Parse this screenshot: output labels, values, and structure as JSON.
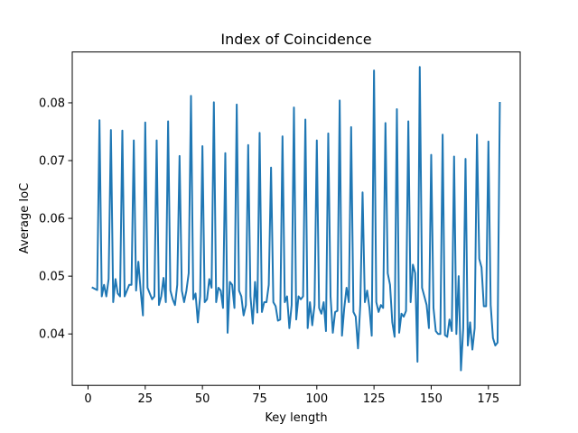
{
  "chart_data": {
    "type": "line",
    "title": "Index of Coincidence",
    "x_label": "Key length",
    "y_label": "Average IoC",
    "color": "#1f77b4",
    "x": [
      2,
      3,
      4,
      5,
      6,
      7,
      8,
      9,
      10,
      11,
      12,
      13,
      14,
      15,
      16,
      17,
      18,
      19,
      20,
      21,
      22,
      23,
      24,
      25,
      26,
      27,
      28,
      29,
      30,
      31,
      32,
      33,
      34,
      35,
      36,
      37,
      38,
      39,
      40,
      41,
      42,
      43,
      44,
      45,
      46,
      47,
      48,
      49,
      50,
      51,
      52,
      53,
      54,
      55,
      56,
      57,
      58,
      59,
      60,
      61,
      62,
      63,
      64,
      65,
      66,
      67,
      68,
      69,
      70,
      71,
      72,
      73,
      74,
      75,
      76,
      77,
      78,
      79,
      80,
      81,
      82,
      83,
      84,
      85,
      86,
      87,
      88,
      89,
      90,
      91,
      92,
      93,
      94,
      95,
      96,
      97,
      98,
      99,
      100,
      101,
      102,
      103,
      104,
      105,
      106,
      107,
      108,
      109,
      110,
      111,
      112,
      113,
      114,
      115,
      116,
      117,
      118,
      119,
      120,
      121,
      122,
      123,
      124,
      125,
      126,
      127,
      128,
      129,
      130,
      131,
      132,
      133,
      134,
      135,
      136,
      137,
      138,
      139,
      140,
      141,
      142,
      143,
      144,
      145,
      146,
      147,
      148,
      149,
      150,
      151,
      152,
      153,
      154,
      155,
      156,
      157,
      158,
      159,
      160,
      161,
      162,
      163,
      164,
      165,
      166,
      167,
      168,
      169,
      170,
      171,
      172,
      173,
      174,
      175,
      176,
      177,
      178,
      179,
      180
    ],
    "values": [
      0.048,
      0.0478,
      0.0476,
      0.077,
      0.0465,
      0.0485,
      0.0465,
      0.0495,
      0.0753,
      0.0455,
      0.0495,
      0.047,
      0.0465,
      0.0752,
      0.0465,
      0.0475,
      0.0485,
      0.0485,
      0.0735,
      0.0475,
      0.0525,
      0.0475,
      0.0432,
      0.0766,
      0.048,
      0.047,
      0.046,
      0.0465,
      0.0735,
      0.045,
      0.0465,
      0.0497,
      0.0455,
      0.0768,
      0.0475,
      0.046,
      0.045,
      0.0485,
      0.0708,
      0.0475,
      0.0455,
      0.0475,
      0.0505,
      0.0812,
      0.046,
      0.047,
      0.042,
      0.0465,
      0.0725,
      0.0455,
      0.046,
      0.0495,
      0.048,
      0.0801,
      0.0455,
      0.048,
      0.0475,
      0.0445,
      0.0713,
      0.0402,
      0.049,
      0.0485,
      0.0445,
      0.0797,
      0.0475,
      0.0465,
      0.0432,
      0.045,
      0.0727,
      0.0465,
      0.0418,
      0.049,
      0.0437,
      0.0748,
      0.0438,
      0.0455,
      0.0455,
      0.0485,
      0.0688,
      0.0455,
      0.0448,
      0.0423,
      0.0425,
      0.0742,
      0.0455,
      0.0465,
      0.041,
      0.045,
      0.0792,
      0.0425,
      0.0465,
      0.046,
      0.0465,
      0.0771,
      0.041,
      0.0455,
      0.0415,
      0.045,
      0.0735,
      0.0445,
      0.0435,
      0.0455,
      0.0405,
      0.0747,
      0.0465,
      0.0402,
      0.0438,
      0.044,
      0.0804,
      0.0397,
      0.0445,
      0.048,
      0.0455,
      0.0758,
      0.0438,
      0.043,
      0.0375,
      0.045,
      0.0645,
      0.0455,
      0.0475,
      0.0445,
      0.0397,
      0.0856,
      0.0455,
      0.0438,
      0.045,
      0.0445,
      0.0765,
      0.0505,
      0.0485,
      0.042,
      0.0395,
      0.0789,
      0.0402,
      0.0435,
      0.043,
      0.044,
      0.0768,
      0.0455,
      0.052,
      0.0505,
      0.0352,
      0.0862,
      0.048,
      0.0465,
      0.045,
      0.041,
      0.071,
      0.0445,
      0.0405,
      0.04,
      0.04,
      0.0745,
      0.0398,
      0.0395,
      0.0425,
      0.0405,
      0.0707,
      0.04,
      0.05,
      0.0337,
      0.041,
      0.0703,
      0.038,
      0.042,
      0.0373,
      0.041,
      0.0745,
      0.053,
      0.0515,
      0.0448,
      0.0448,
      0.0733,
      0.045,
      0.0393,
      0.038,
      0.0385,
      0.08
    ],
    "xlim": [
      -6.9,
      188.9
    ],
    "xticks": [
      0,
      25,
      50,
      75,
      100,
      125,
      150,
      175
    ],
    "ylim": [
      0.0311,
      0.0888
    ],
    "yticks": [
      0.04,
      0.05,
      0.06,
      0.07,
      0.08
    ]
  }
}
